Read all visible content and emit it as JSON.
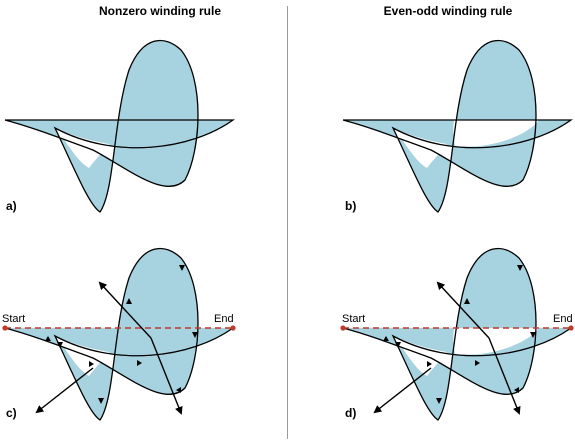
{
  "titles": {
    "left": "Nonzero winding rule",
    "right": "Even-odd winding rule"
  },
  "panel_labels": {
    "a": "a)",
    "b": "b)",
    "c": "c)",
    "d": "d)"
  },
  "endpoints": {
    "start": "Start",
    "end": "End"
  },
  "colors": {
    "fill": "#a7d3e1",
    "stroke": "#000000",
    "dashed_line": "#c0392b",
    "divider": "#9a9a9a"
  }
}
